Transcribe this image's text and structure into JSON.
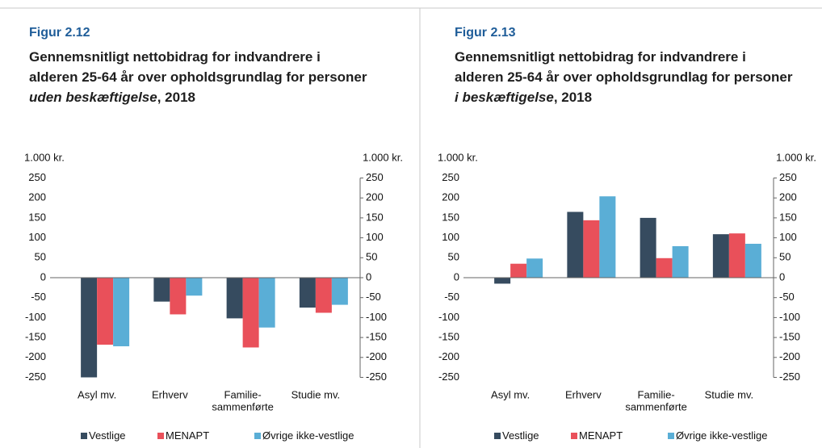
{
  "chart_data": [
    {
      "type": "bar",
      "figure_label": "Figur 2.12",
      "title": [
        "Gennemsnitligt nettobidrag for indvandrere i alderen 25-64 år over opholdsgrundlag for personer ",
        "uden beskæftigelse",
        ", 2018"
      ],
      "y_label": "1.000 kr.",
      "y2_label": "1.000 kr.",
      "categories": [
        [
          "Asyl mv."
        ],
        [
          "Erhverv"
        ],
        [
          "Familie-",
          "sammenførte"
        ],
        [
          "Studie mv."
        ]
      ],
      "series": [
        {
          "name": "Vestlige",
          "color": "#364b5f",
          "values": [
            -250,
            -60,
            -102,
            -75
          ]
        },
        {
          "name": "MENAPT",
          "color": "#e9505a",
          "values": [
            -168,
            -92,
            -175,
            -88
          ]
        },
        {
          "name": "Øvrige ikke-vestlige",
          "color": "#5aaed6",
          "values": [
            -172,
            -45,
            -125,
            -68
          ]
        }
      ],
      "ylim": [
        -250,
        250
      ],
      "yticks": [
        -250,
        -200,
        -150,
        -100,
        -50,
        0,
        50,
        100,
        150,
        200,
        250
      ],
      "y2lim": [
        -250,
        250
      ],
      "y2ticks": [
        -250,
        -200,
        -150,
        -100,
        -50,
        0,
        50,
        100,
        150,
        200,
        250
      ]
    },
    {
      "type": "bar",
      "figure_label": "Figur 2.13",
      "title": [
        "Gennemsnitligt nettobidrag for indvandrere i alderen 25-64 år over opholdsgrundlag for personer ",
        "i beskæftigelse",
        ", 2018"
      ],
      "y_label": "1.000 kr.",
      "y2_label": "1.000 kr.",
      "categories": [
        [
          "Asyl mv."
        ],
        [
          "Erhverv"
        ],
        [
          "Familie-",
          "sammenførte"
        ],
        [
          "Studie mv."
        ]
      ],
      "series": [
        {
          "name": "Vestlige",
          "color": "#364b5f",
          "values": [
            -15,
            165,
            150,
            109
          ]
        },
        {
          "name": "MENAPT",
          "color": "#e9505a",
          "values": [
            35,
            144,
            49,
            111
          ]
        },
        {
          "name": "Øvrige ikke-vestlige",
          "color": "#5aaed6",
          "values": [
            48,
            204,
            79,
            85
          ]
        }
      ],
      "ylim": [
        -250,
        250
      ],
      "yticks": [
        -250,
        -200,
        -150,
        -100,
        -50,
        0,
        50,
        100,
        150,
        200,
        250
      ],
      "y2lim": [
        -250,
        250
      ],
      "y2ticks": [
        -250,
        -200,
        -150,
        -100,
        -50,
        0,
        50,
        100,
        150,
        200,
        250
      ]
    }
  ]
}
